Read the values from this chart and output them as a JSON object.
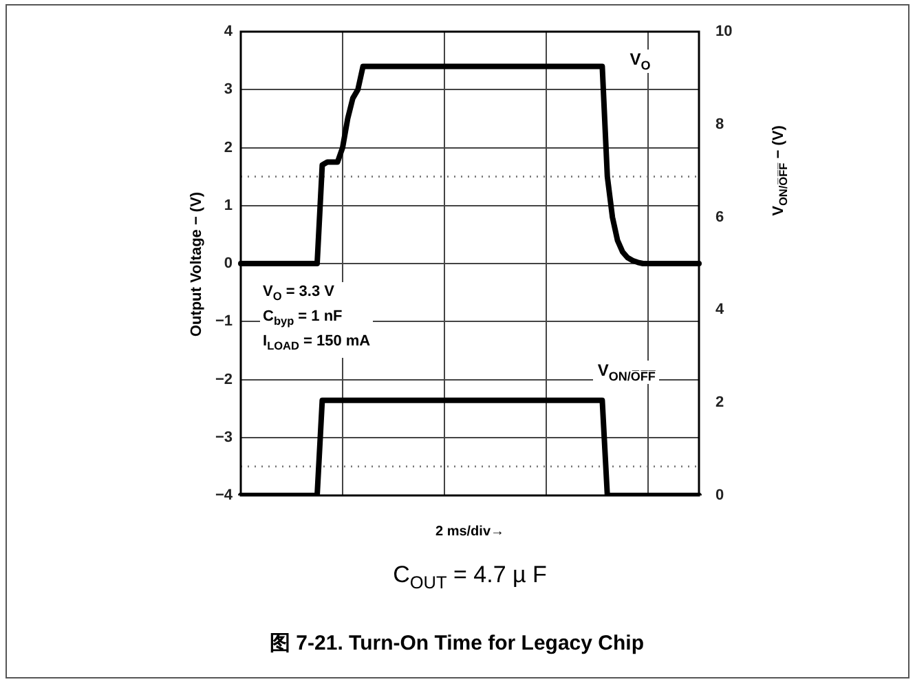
{
  "chart_data": {
    "type": "line",
    "title": "图 7-21. Turn-On Time for Legacy Chip",
    "subtitle": "C$_{OUT}$ = 4.7  µ F",
    "xlabel": "2 ms/div→",
    "ylabel": "Output Voltage − (V)",
    "y2label": "V$_{ON/O̅F̅F̅}$ − (V)",
    "annotations": [
      "V$_{O}$ = 3.3 V",
      "C$_{byp}$ = 1 nF",
      "I$_{LOAD}$ = 150 mA"
    ],
    "categories": [
      null,
      null,
      null,
      null,
      null,
      null,
      null,
      null,
      null,
      null,
      null,
      null,
      null,
      null,
      null,
      null,
      null,
      null,
      null,
      null,
      null,
      null,
      null,
      null,
      null,
      null,
      null,
      null,
      null,
      null,
      null,
      null,
      null,
      null,
      null,
      null,
      null,
      null,
      null,
      null,
      null,
      null,
      null,
      null,
      null,
      null,
      null,
      null,
      null,
      null,
      null,
      null,
      null,
      null,
      null,
      null,
      null,
      null,
      null,
      null,
      null,
      null,
      null,
      null,
      null,
      null,
      null,
      null,
      null,
      null,
      null,
      null,
      null,
      null,
      null,
      null,
      null,
      null,
      null,
      null,
      null,
      null,
      null,
      null,
      null,
      null,
      null,
      null,
      null,
      null,
      null
    ],
    "series": [
      {
        "name": "V$_{O}$",
        "color": "#000000",
        "values": [
          0,
          0,
          0,
          0,
          0,
          0,
          0,
          0,
          0,
          0,
          0,
          0,
          0,
          0,
          0,
          0,
          1.7,
          1.75,
          1.75,
          1.75,
          2.0,
          2.5,
          2.85,
          3.0,
          3.4,
          3.4,
          3.4,
          3.4,
          3.4,
          3.4,
          3.4,
          3.4,
          3.4,
          3.4,
          3.4,
          3.4,
          3.4,
          3.4,
          3.4,
          3.4,
          3.4,
          3.4,
          3.4,
          3.4,
          3.4,
          3.4,
          3.4,
          3.4,
          3.4,
          3.4,
          3.4,
          3.4,
          3.4,
          3.4,
          3.4,
          3.4,
          3.4,
          3.4,
          3.4,
          3.4,
          3.4,
          3.4,
          3.4,
          3.4,
          3.4,
          3.4,
          3.4,
          3.4,
          3.4,
          3.4,
          3.4,
          3.4,
          1.5,
          0.8,
          0.4,
          0.2,
          0.1,
          0.05,
          0.02,
          0,
          0,
          0,
          0,
          0,
          0,
          0,
          0,
          0,
          0,
          0,
          0
        ]
      },
      {
        "name": "V$_{ON/O̅F̅F̅}$",
        "color": "#000000",
        "axis": "y2",
        "values": [
          0,
          0,
          0,
          0,
          0,
          0,
          0,
          0,
          0,
          0,
          0,
          0,
          0,
          0,
          0,
          0,
          2.05,
          2.05,
          2.05,
          2.05,
          2.05,
          2.05,
          2.05,
          2.05,
          2.05,
          2.05,
          2.05,
          2.05,
          2.05,
          2.05,
          2.05,
          2.05,
          2.05,
          2.05,
          2.05,
          2.05,
          2.05,
          2.05,
          2.05,
          2.05,
          2.05,
          2.05,
          2.05,
          2.05,
          2.05,
          2.05,
          2.05,
          2.05,
          2.05,
          2.05,
          2.05,
          2.05,
          2.05,
          2.05,
          2.05,
          2.05,
          2.05,
          2.05,
          2.05,
          2.05,
          2.05,
          2.05,
          2.05,
          2.05,
          2.05,
          2.05,
          2.05,
          2.05,
          2.05,
          2.05,
          2.05,
          2.05,
          0,
          0,
          0,
          0,
          0,
          0,
          0,
          0,
          0,
          0,
          0,
          0,
          0,
          0,
          0,
          0,
          0,
          0,
          0
        ]
      }
    ],
    "ylim": [
      -4,
      4
    ],
    "yticks": [
      {
        "value": -4,
        "label": "−4"
      },
      {
        "value": -3,
        "label": "−3"
      },
      {
        "value": -2,
        "label": "−2"
      },
      {
        "value": -1,
        "label": "−1"
      },
      0,
      1,
      2,
      3,
      4
    ],
    "y2lim": [
      0,
      10
    ],
    "y2ticks": [
      0,
      2,
      4,
      6,
      8,
      10
    ],
    "ref_lines": [
      {
        "axis": "y",
        "value": 1.5,
        "color": "#777777",
        "line_style": "dotted"
      },
      {
        "axis": "y",
        "value": -3.5,
        "color": "#777777",
        "line_style": "dotted"
      }
    ],
    "grid": true,
    "legend": false,
    "tick_labels": "y",
    "marker": "none",
    "line_style": "solid"
  }
}
